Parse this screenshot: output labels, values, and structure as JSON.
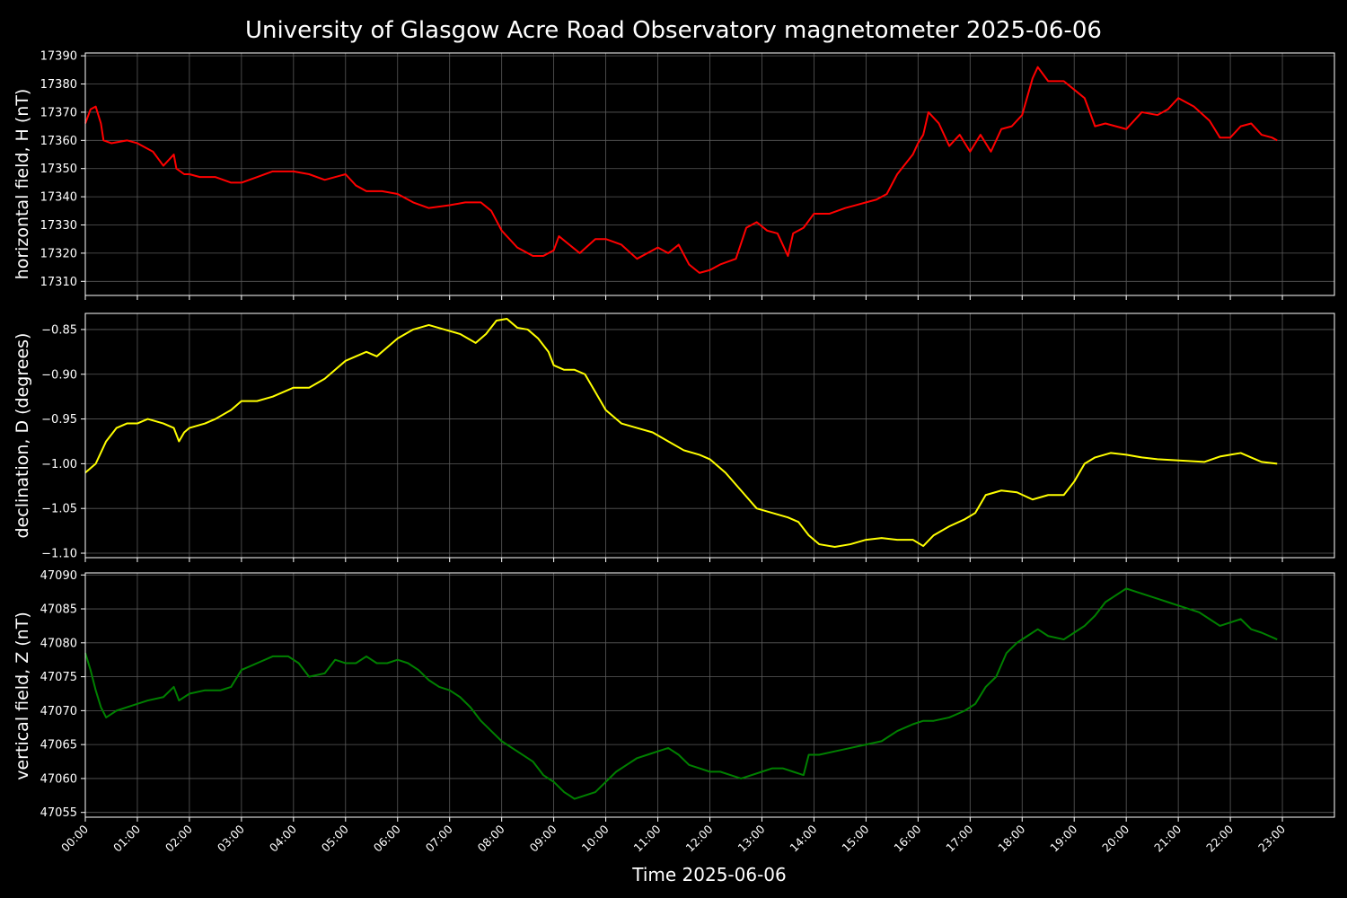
{
  "chart_data": {
    "type": "line",
    "title": "University of Glasgow Acre Road Observatory magnetometer 2025-06-06",
    "xlabel": "Time 2025-06-06",
    "x_unit": "hours",
    "x_ticks": [
      "00:00",
      "01:00",
      "02:00",
      "03:00",
      "04:00",
      "05:00",
      "06:00",
      "07:00",
      "08:00",
      "09:00",
      "10:00",
      "11:00",
      "12:00",
      "13:00",
      "14:00",
      "15:00",
      "16:00",
      "17:00",
      "18:00",
      "19:00",
      "20:00",
      "21:00",
      "22:00",
      "23:00"
    ],
    "xlim": [
      0,
      24
    ],
    "grid": true,
    "panels": [
      {
        "ylabel": "horizontal field, H (nT)",
        "color": "#ff0000",
        "ylim": [
          17305,
          17391
        ],
        "yticks": [
          17310,
          17320,
          17330,
          17340,
          17350,
          17360,
          17370,
          17380,
          17390
        ],
        "decimals": 0,
        "x": [
          0,
          0.1,
          0.2,
          0.3,
          0.35,
          0.5,
          0.8,
          1.0,
          1.3,
          1.5,
          1.7,
          1.75,
          1.9,
          2.0,
          2.2,
          2.5,
          2.8,
          3.0,
          3.3,
          3.6,
          4.0,
          4.3,
          4.6,
          5.0,
          5.2,
          5.4,
          5.7,
          6.0,
          6.3,
          6.6,
          7.0,
          7.3,
          7.6,
          7.8,
          8.0,
          8.3,
          8.6,
          8.8,
          9.0,
          9.1,
          9.3,
          9.5,
          9.8,
          10.0,
          10.3,
          10.6,
          10.8,
          11.0,
          11.2,
          11.4,
          11.6,
          11.8,
          12.0,
          12.2,
          12.5,
          12.7,
          12.9,
          13.1,
          13.3,
          13.5,
          13.6,
          13.8,
          14.0,
          14.3,
          14.6,
          14.8,
          15.0,
          15.2,
          15.4,
          15.6,
          15.9,
          16.0,
          16.1,
          16.2,
          16.4,
          16.6,
          16.8,
          17.0,
          17.2,
          17.4,
          17.6,
          17.8,
          18.0,
          18.2,
          18.3,
          18.5,
          18.8,
          19.0,
          19.2,
          19.4,
          19.6,
          19.8,
          20.0,
          20.3,
          20.6,
          20.8,
          21.0,
          21.3,
          21.6,
          21.8,
          22.0,
          22.2,
          22.4,
          22.6,
          22.8,
          22.9
        ],
        "y": [
          17366,
          17371,
          17372,
          17366,
          17360,
          17359,
          17360,
          17359,
          17356,
          17351,
          17355,
          17350,
          17348,
          17348,
          17347,
          17347,
          17345,
          17345,
          17347,
          17349,
          17349,
          17348,
          17346,
          17348,
          17344,
          17342,
          17342,
          17341,
          17338,
          17336,
          17337,
          17338,
          17338,
          17335,
          17328,
          17322,
          17319,
          17319,
          17321,
          17326,
          17323,
          17320,
          17325,
          17325,
          17323,
          17318,
          17320,
          17322,
          17320,
          17323,
          17316,
          17313,
          17314,
          17316,
          17318,
          17329,
          17331,
          17328,
          17327,
          17319,
          17327,
          17329,
          17334,
          17334,
          17336,
          17337,
          17338,
          17339,
          17341,
          17348,
          17355,
          17359,
          17362,
          17370,
          17366,
          17358,
          17362,
          17356,
          17362,
          17356,
          17364,
          17365,
          17369,
          17382,
          17386,
          17381,
          17381,
          17378,
          17375,
          17365,
          17366,
          17365,
          17364,
          17370,
          17369,
          17371,
          17375,
          17372,
          17367,
          17361,
          17361,
          17365,
          17366,
          17362,
          17361,
          17360
        ]
      },
      {
        "ylabel": "declination, D (degrees)",
        "color": "#ffff00",
        "ylim": [
          -1.105,
          -0.832
        ],
        "yticks": [
          -1.1,
          -1.05,
          -1.0,
          -0.95,
          -0.9,
          -0.85
        ],
        "decimals": 2,
        "x": [
          0,
          0.2,
          0.4,
          0.6,
          0.8,
          1.0,
          1.2,
          1.5,
          1.7,
          1.8,
          1.9,
          2.0,
          2.3,
          2.5,
          2.8,
          3.0,
          3.3,
          3.6,
          3.8,
          4.0,
          4.3,
          4.6,
          4.8,
          5.0,
          5.2,
          5.4,
          5.6,
          5.8,
          6.0,
          6.3,
          6.6,
          6.9,
          7.2,
          7.5,
          7.7,
          7.9,
          8.1,
          8.3,
          8.5,
          8.7,
          8.9,
          9.0,
          9.2,
          9.4,
          9.6,
          9.8,
          10.0,
          10.3,
          10.6,
          10.9,
          11.2,
          11.5,
          11.8,
          12.0,
          12.3,
          12.6,
          12.9,
          13.2,
          13.5,
          13.7,
          13.9,
          14.1,
          14.4,
          14.7,
          15.0,
          15.3,
          15.6,
          15.9,
          16.1,
          16.3,
          16.6,
          16.9,
          17.1,
          17.3,
          17.6,
          17.9,
          18.2,
          18.5,
          18.8,
          19.0,
          19.2,
          19.4,
          19.7,
          20.0,
          20.3,
          20.6,
          20.9,
          21.2,
          21.5,
          21.8,
          22.0,
          22.2,
          22.4,
          22.6,
          22.9
        ],
        "y": [
          -1.01,
          -1.0,
          -0.975,
          -0.96,
          -0.955,
          -0.955,
          -0.95,
          -0.955,
          -0.96,
          -0.975,
          -0.965,
          -0.96,
          -0.955,
          -0.95,
          -0.94,
          -0.93,
          -0.93,
          -0.925,
          -0.92,
          -0.915,
          -0.915,
          -0.905,
          -0.895,
          -0.885,
          -0.88,
          -0.875,
          -0.88,
          -0.87,
          -0.86,
          -0.85,
          -0.845,
          -0.85,
          -0.855,
          -0.865,
          -0.855,
          -0.84,
          -0.838,
          -0.848,
          -0.85,
          -0.86,
          -0.875,
          -0.89,
          -0.895,
          -0.895,
          -0.9,
          -0.92,
          -0.94,
          -0.955,
          -0.96,
          -0.965,
          -0.975,
          -0.985,
          -0.99,
          -0.995,
          -1.01,
          -1.03,
          -1.05,
          -1.055,
          -1.06,
          -1.065,
          -1.08,
          -1.09,
          -1.093,
          -1.09,
          -1.085,
          -1.083,
          -1.085,
          -1.085,
          -1.092,
          -1.08,
          -1.07,
          -1.062,
          -1.055,
          -1.035,
          -1.03,
          -1.032,
          -1.04,
          -1.035,
          -1.035,
          -1.02,
          -1.0,
          -0.993,
          -0.988,
          -0.99,
          -0.993,
          -0.995,
          -0.996,
          -0.997,
          -0.998,
          -0.992,
          -0.99,
          -0.988,
          -0.993,
          -0.998,
          -1.0
        ]
      },
      {
        "ylabel": "vertical field, Z (nT)",
        "color": "#008000",
        "ylim": [
          47054.3,
          47090.3
        ],
        "yticks": [
          47055,
          47060,
          47065,
          47070,
          47075,
          47080,
          47085,
          47090
        ],
        "decimals": 0,
        "x": [
          0,
          0.1,
          0.2,
          0.3,
          0.4,
          0.6,
          0.8,
          1.0,
          1.2,
          1.5,
          1.7,
          1.8,
          2.0,
          2.3,
          2.6,
          2.8,
          3.0,
          3.3,
          3.6,
          3.9,
          4.1,
          4.3,
          4.6,
          4.8,
          5.0,
          5.2,
          5.4,
          5.6,
          5.8,
          6.0,
          6.2,
          6.4,
          6.6,
          6.8,
          7.0,
          7.2,
          7.4,
          7.6,
          7.8,
          8.0,
          8.3,
          8.6,
          8.8,
          9.0,
          9.2,
          9.4,
          9.6,
          9.8,
          10.0,
          10.2,
          10.4,
          10.6,
          10.8,
          11.0,
          11.2,
          11.4,
          11.6,
          11.8,
          12.0,
          12.2,
          12.4,
          12.6,
          12.8,
          13.0,
          13.2,
          13.4,
          13.6,
          13.8,
          13.9,
          14.1,
          14.4,
          14.7,
          15.0,
          15.3,
          15.6,
          15.9,
          16.1,
          16.3,
          16.6,
          16.9,
          17.1,
          17.3,
          17.5,
          17.7,
          17.9,
          18.1,
          18.3,
          18.5,
          18.8,
          19.0,
          19.2,
          19.4,
          19.6,
          19.8,
          20.0,
          20.2,
          20.4,
          20.6,
          20.8,
          21.0,
          21.2,
          21.4,
          21.6,
          21.8,
          22.0,
          22.2,
          22.4,
          22.6,
          22.9
        ],
        "y": [
          47078.5,
          47076,
          47073,
          47070.5,
          47069,
          47070,
          47070.5,
          47071,
          47071.5,
          47072,
          47073.5,
          47071.5,
          47072.5,
          47073,
          47073,
          47073.5,
          47076,
          47077,
          47078,
          47078,
          47077,
          47075,
          47075.5,
          47077.5,
          47077,
          47077,
          47078,
          47077,
          47077,
          47077.5,
          47077,
          47076,
          47074.5,
          47073.5,
          47073,
          47072,
          47070.5,
          47068.5,
          47067,
          47065.5,
          47064,
          47062.5,
          47060.5,
          47059.5,
          47058,
          47057,
          47057.5,
          47058,
          47059.5,
          47061,
          47062,
          47063,
          47063.5,
          47064,
          47064.5,
          47063.5,
          47062,
          47061.5,
          47061,
          47061,
          47060.5,
          47060,
          47060.5,
          47061,
          47061.5,
          47061.5,
          47061,
          47060.5,
          47063.5,
          47063.5,
          47064,
          47064.5,
          47065,
          47065.5,
          47067,
          47068,
          47068.5,
          47068.5,
          47069,
          47070,
          47071,
          47073.5,
          47075,
          47078.5,
          47080,
          47081,
          47082,
          47081,
          47080.5,
          47081.5,
          47082.5,
          47084,
          47086,
          47087,
          47088,
          47087.5,
          47087,
          47086.5,
          47086,
          47085.5,
          47085,
          47084.5,
          47083.5,
          47082.5,
          47083,
          47083.5,
          47082,
          47081.5,
          47080.5
        ]
      }
    ]
  }
}
